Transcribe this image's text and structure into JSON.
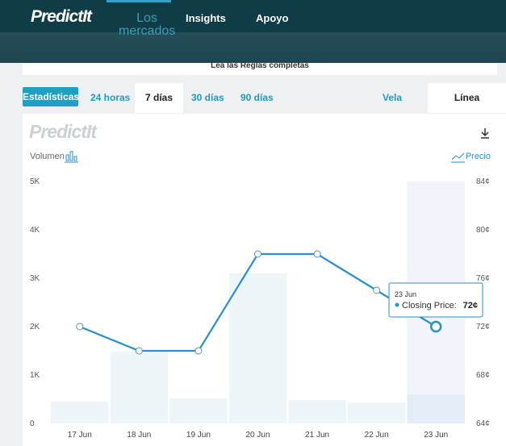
{
  "header": {
    "logo": "PredictIt",
    "nav": [
      "Los mercados",
      "Insights",
      "Apoyo"
    ]
  },
  "rules_link": "Lea las Reglas completas",
  "tabs": {
    "stats": "Estadísticas",
    "ranges": [
      "24 horas",
      "7 días",
      "30 días",
      "90 días"
    ],
    "styles": [
      "Vela",
      "Línea"
    ]
  },
  "chart_data": {
    "type": "combo",
    "watermark": "PredictIt",
    "ylabel": "Volumen",
    "y2label": "Precio",
    "categories": [
      "17 Jun",
      "18 Jun",
      "19 Jun",
      "20 Jun",
      "21 Jun",
      "22 Jun",
      "23 Jun"
    ],
    "series": [
      {
        "name": "Volumen",
        "type": "bar",
        "color": "#eef5f9",
        "values": [
          450,
          1480,
          520,
          3100,
          480,
          430,
          600
        ]
      },
      {
        "name": "Closing Price",
        "type": "line",
        "axis": "y2",
        "color": "#2a8fcc",
        "values": [
          72,
          70,
          70,
          78,
          78,
          75,
          72
        ]
      }
    ],
    "ylim": [
      0,
      5000
    ],
    "yticks": [
      0,
      {
        "value": 1000,
        "label": "1K"
      },
      {
        "value": 2000,
        "label": "2K"
      },
      {
        "value": 3000,
        "label": "3K"
      },
      {
        "value": 4000,
        "label": "4K"
      },
      {
        "value": 5000,
        "label": "5K"
      }
    ],
    "y2lim": [
      64,
      84
    ],
    "y2ticks": [
      {
        "value": 64,
        "label": "64¢"
      },
      {
        "value": 68,
        "label": "68¢"
      },
      {
        "value": 72,
        "label": "72¢"
      },
      {
        "value": 76,
        "label": "76¢"
      },
      {
        "value": 80,
        "label": "80¢"
      },
      {
        "value": 84,
        "label": "84¢"
      }
    ],
    "grid": false,
    "tooltip": {
      "title": "23 Jun",
      "label": "Closing Price:",
      "value": "72¢"
    }
  }
}
